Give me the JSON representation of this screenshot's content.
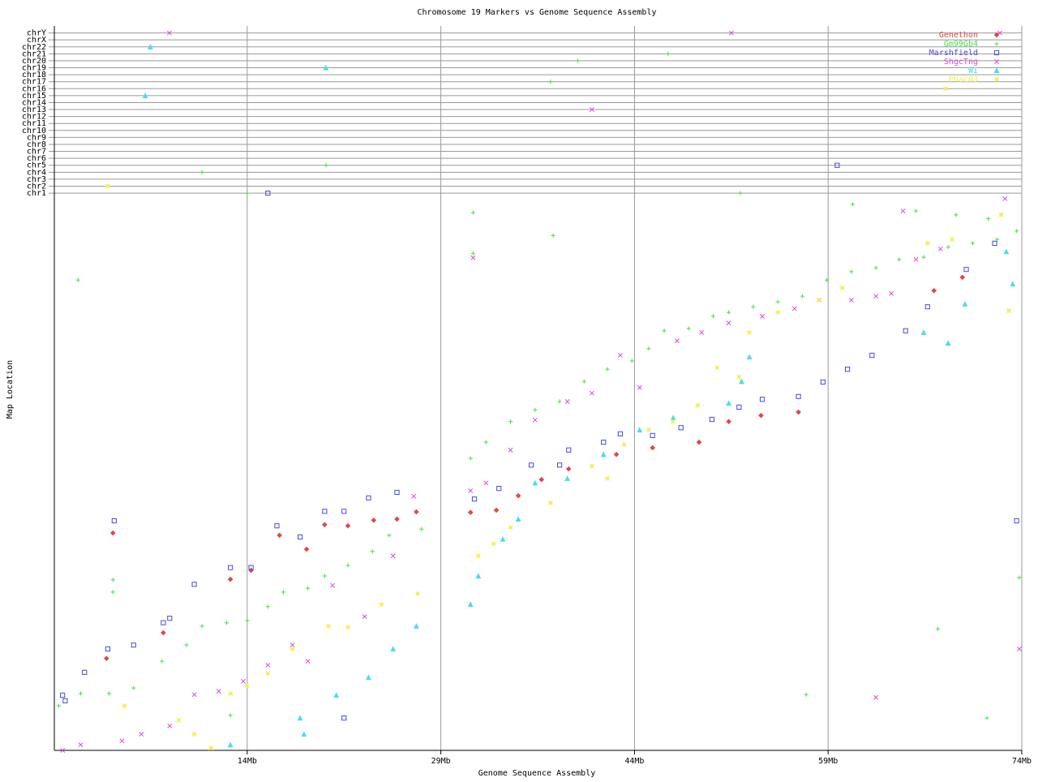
{
  "chart_data": {
    "type": "scatter",
    "title": "Chromosome 19 Markers vs Genome Sequence Assembly",
    "x_label": "Genome Sequence Assembly",
    "y_label": "Map Location",
    "xlim": [
      -0.94,
      74
    ],
    "ylim": [
      0,
      130
    ],
    "xticks": [
      {
        "value": 14,
        "label": "14Mb"
      },
      {
        "value": 29,
        "label": "29Mb"
      },
      {
        "value": 44,
        "label": "44Mb"
      },
      {
        "value": 59,
        "label": "59Mb"
      },
      {
        "value": 74,
        "label": "74Mb"
      }
    ],
    "yticks": [
      {
        "value": 100,
        "label": "chr1"
      },
      {
        "value": 101.25,
        "label": "chr2"
      },
      {
        "value": 102.5,
        "label": "chr3"
      },
      {
        "value": 103.75,
        "label": "chr4"
      },
      {
        "value": 105,
        "label": "chr5"
      },
      {
        "value": 106.25,
        "label": "chr6"
      },
      {
        "value": 107.5,
        "label": "chr7"
      },
      {
        "value": 108.75,
        "label": "chr8"
      },
      {
        "value": 110,
        "label": "chr9"
      },
      {
        "value": 111.25,
        "label": "chr10"
      },
      {
        "value": 112.5,
        "label": "chr11"
      },
      {
        "value": 113.75,
        "label": "chr12"
      },
      {
        "value": 115,
        "label": "chr13"
      },
      {
        "value": 116.25,
        "label": "chr14"
      },
      {
        "value": 117.5,
        "label": "chr15"
      },
      {
        "value": 118.75,
        "label": "chr16"
      },
      {
        "value": 120,
        "label": "chr17"
      },
      {
        "value": 121.25,
        "label": "chr18"
      },
      {
        "value": 122.5,
        "label": "chr19"
      },
      {
        "value": 123.75,
        "label": "chr20"
      },
      {
        "value": 125,
        "label": "chr21"
      },
      {
        "value": 126.25,
        "label": "chr22"
      },
      {
        "value": 127.5,
        "label": "chrX"
      },
      {
        "value": 128.75,
        "label": "chrY"
      }
    ],
    "grid": true,
    "legend": "upper right",
    "series": [
      {
        "name": "Genethon",
        "color": "#e04848",
        "marker": "diamond",
        "x": [
          3.6,
          3.1,
          7.5,
          12.7,
          14.3,
          16.5,
          18.6,
          20,
          21.8,
          23.8,
          25.6,
          27.1,
          31.3,
          33.3,
          35,
          36.8,
          38.9,
          42.6,
          45.4,
          49,
          51.3,
          53.8,
          56.7,
          67.2,
          69.4
        ],
        "y": [
          39,
          16.5,
          21.1,
          30.7,
          32.3,
          38.6,
          36.1,
          40.5,
          40.3,
          41.3,
          41.5,
          42.8,
          42.7,
          43.1,
          45.7,
          48.6,
          50.5,
          53.1,
          54.3,
          55.3,
          59,
          60.1,
          60.7,
          82.5,
          84.9
        ]
      },
      {
        "name": "Gm99Gb4",
        "color": "#48e048",
        "marker": "plus",
        "x": [
          -0.6,
          1.1,
          3.3,
          5.2,
          7.4,
          9.3,
          10.5,
          12.4,
          14,
          15.6,
          16.8,
          18.7,
          20,
          21.8,
          23.7,
          25,
          27.5,
          3.6,
          3.6,
          31.3,
          32.5,
          34.4,
          36.3,
          38.2,
          40.1,
          41.9,
          43.8,
          45.1,
          46.3,
          48.2,
          50.1,
          51.3,
          53.2,
          55.1,
          57,
          58.9,
          60.8,
          62.7,
          64.5,
          66.4,
          68.3,
          70.2,
          72.1,
          73.6,
          65.8,
          68.9,
          71.4,
          31.5,
          37.7,
          0.9,
          60.9,
          57.3,
          67.5,
          71.3,
          73.8,
          12.7,
          31.5,
          14,
          10.5,
          20.1,
          37.5,
          39.6,
          46.6,
          52.2
        ],
        "y": [
          8,
          10.2,
          10.2,
          11.2,
          16,
          18.9,
          22.3,
          22.9,
          23.3,
          25.8,
          28.4,
          29.1,
          31.3,
          33.2,
          35.7,
          38.6,
          39.7,
          30.6,
          28.4,
          52.4,
          55.3,
          59,
          61.1,
          62.6,
          66.2,
          68.4,
          69.9,
          72.1,
          75.3,
          75.7,
          77.9,
          78.6,
          79.6,
          80.5,
          81.5,
          84.4,
          85.9,
          86.6,
          88.1,
          88.5,
          90.3,
          91,
          91.7,
          93.2,
          96.8,
          96.1,
          95.4,
          96.5,
          92.4,
          84.4,
          98,
          10,
          21.8,
          5.8,
          31,
          6.3,
          89.2,
          100,
          103.75,
          105,
          120,
          123.75,
          125,
          100
        ]
      },
      {
        "name": "Marshfield",
        "color": "#4848e0",
        "marker": "square",
        "x": [
          -0.3,
          -0.1,
          1.4,
          3.2,
          3.7,
          5.2,
          7.5,
          8,
          9.9,
          12.7,
          14.3,
          16.3,
          18.1,
          20,
          21.5,
          23.4,
          25.6,
          21.5,
          31.6,
          33.5,
          36,
          38.2,
          38.9,
          41.6,
          42.9,
          45.4,
          47.6,
          50,
          52.1,
          53.9,
          56.7,
          58.6,
          60.5,
          62.4,
          65,
          66.7,
          69.7,
          71.9,
          73.6,
          59.7,
          15.6
        ],
        "y": [
          9.9,
          8.9,
          14,
          18.2,
          41.2,
          18.9,
          22.9,
          23.7,
          29.8,
          32.8,
          32.8,
          40.3,
          38.3,
          42.9,
          42.9,
          45.3,
          46.3,
          5.8,
          45.1,
          47,
          51.2,
          51.2,
          53.9,
          55.3,
          56.8,
          56.5,
          57.9,
          59.4,
          61.6,
          63,
          63.5,
          66.1,
          68.4,
          70.9,
          75.3,
          79.6,
          86.3,
          91,
          41.2,
          105,
          100
        ]
      },
      {
        "name": "ShgcTng",
        "color": "#e048e0",
        "marker": "cross",
        "x": [
          -0.3,
          1.1,
          4.3,
          5.8,
          8,
          9.9,
          11.8,
          13.7,
          15.6,
          17.5,
          18.7,
          20.6,
          23.1,
          25.3,
          26.9,
          31.3,
          32.5,
          34.4,
          36.3,
          38.8,
          40.7,
          42.9,
          44.4,
          47.3,
          49.2,
          51.3,
          53.9,
          56.4,
          58.3,
          60.8,
          62.7,
          63.9,
          65.8,
          67.7,
          64.8,
          72.7,
          31.5,
          62.7,
          73.8,
          7.97,
          51.5,
          40.7,
          72.3
        ],
        "y": [
          0,
          1,
          1.7,
          2.9,
          4.4,
          10,
          10.6,
          12.4,
          15.3,
          18.9,
          16,
          29.6,
          24,
          34.9,
          45.6,
          46.6,
          48,
          53.9,
          59.3,
          62.6,
          64.1,
          70.9,
          65.1,
          73.5,
          75,
          76.7,
          77.9,
          79.3,
          80.8,
          80.8,
          81.5,
          82,
          88.1,
          90,
          96.8,
          99,
          88.4,
          9.5,
          18.2,
          128.75,
          128.75,
          115,
          128.75
        ]
      },
      {
        "name": "WI",
        "color": "#48e0e0",
        "marker": "triangle",
        "x": [
          12.7,
          18.1,
          18.4,
          20.9,
          23.4,
          25.3,
          27.1,
          31.3,
          31.9,
          33.8,
          35,
          36.3,
          38.8,
          41.6,
          44.4,
          47,
          51.3,
          52.3,
          52.9,
          66.4,
          68.3,
          69.6,
          72.8,
          73.3,
          6.5,
          20.1,
          6.1
        ],
        "y": [
          1,
          5.8,
          2.9,
          9.9,
          13.1,
          18.2,
          22.3,
          26.2,
          31.3,
          37.9,
          41.5,
          48,
          48.8,
          53.1,
          57.5,
          59.7,
          62.3,
          66.2,
          70.6,
          75,
          73.1,
          80.1,
          89.5,
          83.7,
          126.25,
          122.5,
          117.5
        ]
      },
      {
        "name": "Phac03",
        "color": "#f0f048",
        "marker": "star",
        "x": [
          3.2,
          4.5,
          8.7,
          9.9,
          11.2,
          12.7,
          14,
          15.6,
          17.5,
          20.3,
          21.8,
          24.4,
          27.2,
          31.9,
          33.1,
          34.4,
          37.5,
          40.7,
          41.9,
          43.2,
          45.1,
          47,
          48.9,
          50.4,
          52.1,
          52.9,
          55.1,
          58.3,
          60.1,
          66.7,
          68.6,
          72.4,
          73,
          68.1
        ],
        "y": [
          101.25,
          8,
          5.4,
          2.9,
          0.4,
          10.2,
          11.6,
          13.8,
          18.2,
          22.3,
          22.1,
          26.2,
          28.1,
          34.9,
          37.1,
          40,
          44.4,
          51,
          48.8,
          54.9,
          57.5,
          59,
          61.9,
          68.7,
          67,
          75,
          78.6,
          80.8,
          83,
          91,
          91.7,
          96.1,
          78.9,
          118.75
        ]
      }
    ]
  }
}
